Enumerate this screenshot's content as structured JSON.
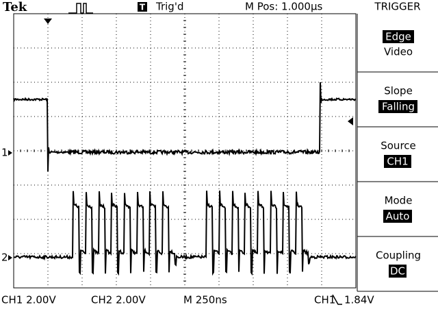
{
  "header": {
    "brand": "Tek",
    "trigger_icon": "T",
    "status": "Trig'd",
    "position": "M Pos: 1.000µs"
  },
  "menu": {
    "title": "TRIGGER",
    "items": [
      {
        "lines": [
          "Edge",
          "Video"
        ]
      },
      {
        "lines": [
          "Slope",
          "Falling"
        ]
      },
      {
        "lines": [
          "Source",
          "CH1"
        ]
      },
      {
        "lines": [
          "Mode",
          "Auto"
        ]
      },
      {
        "lines": [
          "Coupling",
          "DC"
        ]
      }
    ]
  },
  "markers": [
    "1",
    "2"
  ],
  "footer": {
    "ch1": "CH1 2.00V",
    "ch2": "CH2 2.00V",
    "timebase": "M 250ns",
    "trigger_source": "CH1",
    "trigger_level": "1.84V"
  }
}
